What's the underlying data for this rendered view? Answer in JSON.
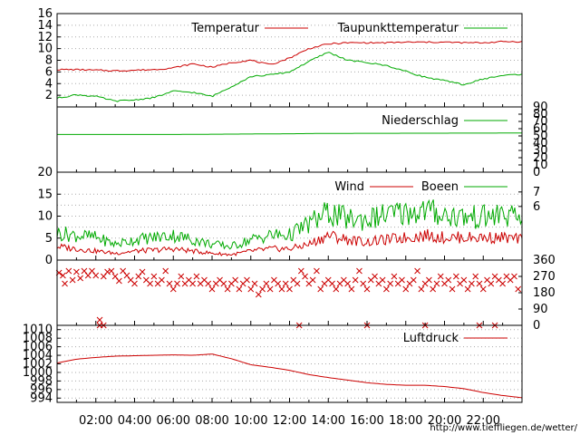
{
  "chart_data": [
    {
      "type": "line",
      "panel": "temperature",
      "ylim": [
        0,
        16
      ],
      "y_ticks": [
        "2",
        "4",
        "6",
        "8",
        "10",
        "12",
        "14",
        "16"
      ],
      "grid": true,
      "legend_placement": "top",
      "x": [
        "00:00",
        "01:00",
        "02:00",
        "03:00",
        "04:00",
        "05:00",
        "06:00",
        "07:00",
        "08:00",
        "09:00",
        "10:00",
        "11:00",
        "12:00",
        "13:00",
        "14:00",
        "15:00",
        "16:00",
        "17:00",
        "18:00",
        "19:00",
        "20:00",
        "21:00",
        "22:00",
        "23:00",
        "23:59"
      ],
      "series": [
        {
          "name": "Temperatur",
          "color": "#cc0000",
          "values": [
            6.4,
            6.4,
            6.3,
            6.2,
            6.3,
            6.4,
            6.7,
            7.4,
            6.8,
            7.6,
            8.0,
            7.2,
            8.4,
            10.0,
            10.8,
            11.0,
            11.0,
            11.0,
            11.1,
            11.1,
            11.1,
            11.0,
            11.0,
            11.2,
            11.2
          ]
        },
        {
          "name": "Taupunkttemperatur",
          "color": "#00aa00",
          "values": [
            1.5,
            2.1,
            1.8,
            1.0,
            1.2,
            1.6,
            2.7,
            2.5,
            1.8,
            3.5,
            5.2,
            5.5,
            6.0,
            7.8,
            9.4,
            8.0,
            7.6,
            7.1,
            6.1,
            5.1,
            4.5,
            3.8,
            4.8,
            5.4,
            5.6
          ]
        }
      ]
    },
    {
      "type": "line",
      "panel": "precipitation",
      "ylim": [
        0,
        90
      ],
      "y_ticks_right": [
        "0",
        "10",
        "20",
        "30",
        "40",
        "50",
        "60",
        "70",
        "80",
        "90"
      ],
      "legend_placement": "top-right",
      "x": [
        "00:00",
        "06:00",
        "12:00",
        "14:00",
        "23:59"
      ],
      "series": [
        {
          "name": "Niederschlag",
          "color": "#00aa00",
          "values": [
            52,
            52,
            53,
            53.5,
            54
          ]
        }
      ]
    },
    {
      "type": "line",
      "panel": "wind",
      "ylim": [
        0,
        20
      ],
      "y_ticks": [
        "0",
        "5",
        "10",
        "15",
        "20"
      ],
      "y_ticks_right": [
        "6",
        "7"
      ],
      "legend_placement": "top-right",
      "x": [
        "00:00",
        "01:00",
        "02:00",
        "03:00",
        "04:00",
        "05:00",
        "06:00",
        "07:00",
        "08:00",
        "09:00",
        "10:00",
        "11:00",
        "12:00",
        "13:00",
        "14:00",
        "15:00",
        "16:00",
        "17:00",
        "18:00",
        "19:00",
        "20:00",
        "21:00",
        "22:00",
        "23:00",
        "23:59"
      ],
      "series": [
        {
          "name": "Wind",
          "color": "#cc0000",
          "values": [
            3.0,
            2.5,
            2.0,
            1.5,
            2.0,
            2.2,
            2.5,
            2.0,
            1.5,
            1.2,
            2.0,
            2.5,
            2.5,
            3.5,
            5.5,
            4.5,
            4.0,
            4.5,
            5.0,
            5.5,
            5.0,
            5.0,
            5.0,
            5.0,
            4.5
          ]
        },
        {
          "name": "Boeen",
          "color": "#00aa00",
          "values": [
            6.0,
            5.5,
            5.0,
            3.5,
            4.5,
            5.0,
            5.5,
            4.5,
            3.5,
            3.0,
            4.5,
            5.5,
            5.5,
            8.0,
            10.5,
            9.0,
            9.0,
            10.0,
            10.5,
            11.0,
            10.0,
            9.5,
            9.5,
            10.0,
            9.0
          ]
        }
      ]
    },
    {
      "type": "scatter",
      "panel": "wind-direction",
      "ylim": [
        0,
        360
      ],
      "y_ticks_right": [
        "0",
        "90",
        "180",
        "270",
        "360"
      ],
      "marker": "x",
      "color": "#cc0000",
      "points": [
        [
          0.1,
          290
        ],
        [
          0.3,
          275
        ],
        [
          0.4,
          230
        ],
        [
          0.6,
          300
        ],
        [
          0.8,
          250
        ],
        [
          1.0,
          295
        ],
        [
          1.2,
          260
        ],
        [
          1.4,
          300
        ],
        [
          1.6,
          275
        ],
        [
          1.8,
          300
        ],
        [
          2.0,
          275
        ],
        [
          2.2,
          30
        ],
        [
          2.4,
          270
        ],
        [
          2.6,
          295
        ],
        [
          2.8,
          300
        ],
        [
          3.0,
          270
        ],
        [
          3.2,
          245
        ],
        [
          3.4,
          300
        ],
        [
          3.6,
          275
        ],
        [
          3.8,
          250
        ],
        [
          4.0,
          230
        ],
        [
          4.2,
          270
        ],
        [
          4.4,
          295
        ],
        [
          4.6,
          250
        ],
        [
          4.8,
          230
        ],
        [
          5.0,
          270
        ],
        [
          5.2,
          230
        ],
        [
          5.4,
          250
        ],
        [
          5.6,
          300
        ],
        [
          5.8,
          230
        ],
        [
          6.0,
          200
        ],
        [
          6.2,
          230
        ],
        [
          6.4,
          270
        ],
        [
          6.6,
          230
        ],
        [
          6.8,
          250
        ],
        [
          7.0,
          230
        ],
        [
          7.2,
          270
        ],
        [
          7.4,
          230
        ],
        [
          7.6,
          250
        ],
        [
          7.8,
          230
        ],
        [
          8.0,
          200
        ],
        [
          8.2,
          230
        ],
        [
          8.4,
          250
        ],
        [
          8.6,
          230
        ],
        [
          8.8,
          200
        ],
        [
          9.0,
          230
        ],
        [
          9.2,
          250
        ],
        [
          9.4,
          200
        ],
        [
          9.6,
          230
        ],
        [
          9.8,
          250
        ],
        [
          10.0,
          200
        ],
        [
          10.2,
          230
        ],
        [
          10.4,
          170
        ],
        [
          10.6,
          200
        ],
        [
          10.8,
          230
        ],
        [
          11.0,
          200
        ],
        [
          11.2,
          250
        ],
        [
          11.4,
          230
        ],
        [
          11.6,
          200
        ],
        [
          11.8,
          230
        ],
        [
          12.0,
          200
        ],
        [
          12.2,
          250
        ],
        [
          12.4,
          230
        ],
        [
          12.6,
          300
        ],
        [
          12.8,
          270
        ],
        [
          13.0,
          230
        ],
        [
          13.2,
          250
        ],
        [
          13.4,
          300
        ],
        [
          13.6,
          200
        ],
        [
          13.8,
          230
        ],
        [
          14.0,
          250
        ],
        [
          14.2,
          230
        ],
        [
          14.4,
          200
        ],
        [
          14.6,
          230
        ],
        [
          14.8,
          250
        ],
        [
          15.0,
          230
        ],
        [
          15.2,
          200
        ],
        [
          15.4,
          250
        ],
        [
          15.6,
          300
        ],
        [
          15.8,
          230
        ],
        [
          16.0,
          200
        ],
        [
          16.2,
          250
        ],
        [
          16.4,
          270
        ],
        [
          16.6,
          230
        ],
        [
          16.8,
          250
        ],
        [
          17.0,
          200
        ],
        [
          17.2,
          230
        ],
        [
          17.4,
          270
        ],
        [
          17.6,
          230
        ],
        [
          17.8,
          250
        ],
        [
          18.0,
          200
        ],
        [
          18.2,
          230
        ],
        [
          18.4,
          250
        ],
        [
          18.6,
          300
        ],
        [
          18.8,
          200
        ],
        [
          19.0,
          230
        ],
        [
          19.2,
          250
        ],
        [
          19.4,
          200
        ],
        [
          19.6,
          230
        ],
        [
          19.8,
          270
        ],
        [
          20.0,
          230
        ],
        [
          20.2,
          250
        ],
        [
          20.4,
          200
        ],
        [
          20.6,
          270
        ],
        [
          20.8,
          230
        ],
        [
          21.0,
          250
        ],
        [
          21.2,
          200
        ],
        [
          21.4,
          230
        ],
        [
          21.6,
          270
        ],
        [
          21.8,
          230
        ],
        [
          22.0,
          200
        ],
        [
          22.2,
          250
        ],
        [
          22.4,
          230
        ],
        [
          22.6,
          270
        ],
        [
          22.8,
          250
        ],
        [
          23.0,
          230
        ],
        [
          23.2,
          270
        ],
        [
          23.4,
          250
        ],
        [
          23.6,
          270
        ],
        [
          23.8,
          200
        ],
        [
          2.2,
          0
        ],
        [
          2.4,
          0
        ],
        [
          12.5,
          0
        ],
        [
          16.0,
          0
        ],
        [
          19.0,
          0
        ],
        [
          21.8,
          0
        ],
        [
          22.6,
          0
        ]
      ]
    },
    {
      "type": "line",
      "panel": "pressure",
      "ylim": [
        993,
        1011
      ],
      "y_ticks": [
        "994",
        "996",
        "998",
        "1000",
        "1002",
        "1004",
        "1006",
        "1008",
        "1010"
      ],
      "legend_placement": "top-right",
      "x_tick_labels": [
        "02:00",
        "04:00",
        "06:00",
        "08:00",
        "10:00",
        "12:00",
        "14:00",
        "16:00",
        "18:00",
        "20:00",
        "22:00"
      ],
      "x": [
        "00:00",
        "01:00",
        "02:00",
        "03:00",
        "04:00",
        "05:00",
        "06:00",
        "07:00",
        "08:00",
        "09:00",
        "10:00",
        "11:00",
        "12:00",
        "13:00",
        "14:00",
        "15:00",
        "16:00",
        "17:00",
        "18:00",
        "19:00",
        "20:00",
        "21:00",
        "22:00",
        "23:00",
        "23:59"
      ],
      "series": [
        {
          "name": "Luftdruck",
          "color": "#cc0000",
          "values": [
            1002.2,
            1003.1,
            1003.5,
            1003.8,
            1003.9,
            1004.0,
            1004.1,
            1004.0,
            1004.3,
            1003.2,
            1001.8,
            1001.2,
            1000.5,
            999.5,
            998.8,
            998.2,
            997.6,
            997.2,
            997.0,
            997.0,
            996.7,
            996.2,
            995.3,
            994.6,
            994.1
          ]
        }
      ]
    }
  ],
  "footer": {
    "url_text": "http://www.tieffliegen.de/wetter/"
  }
}
